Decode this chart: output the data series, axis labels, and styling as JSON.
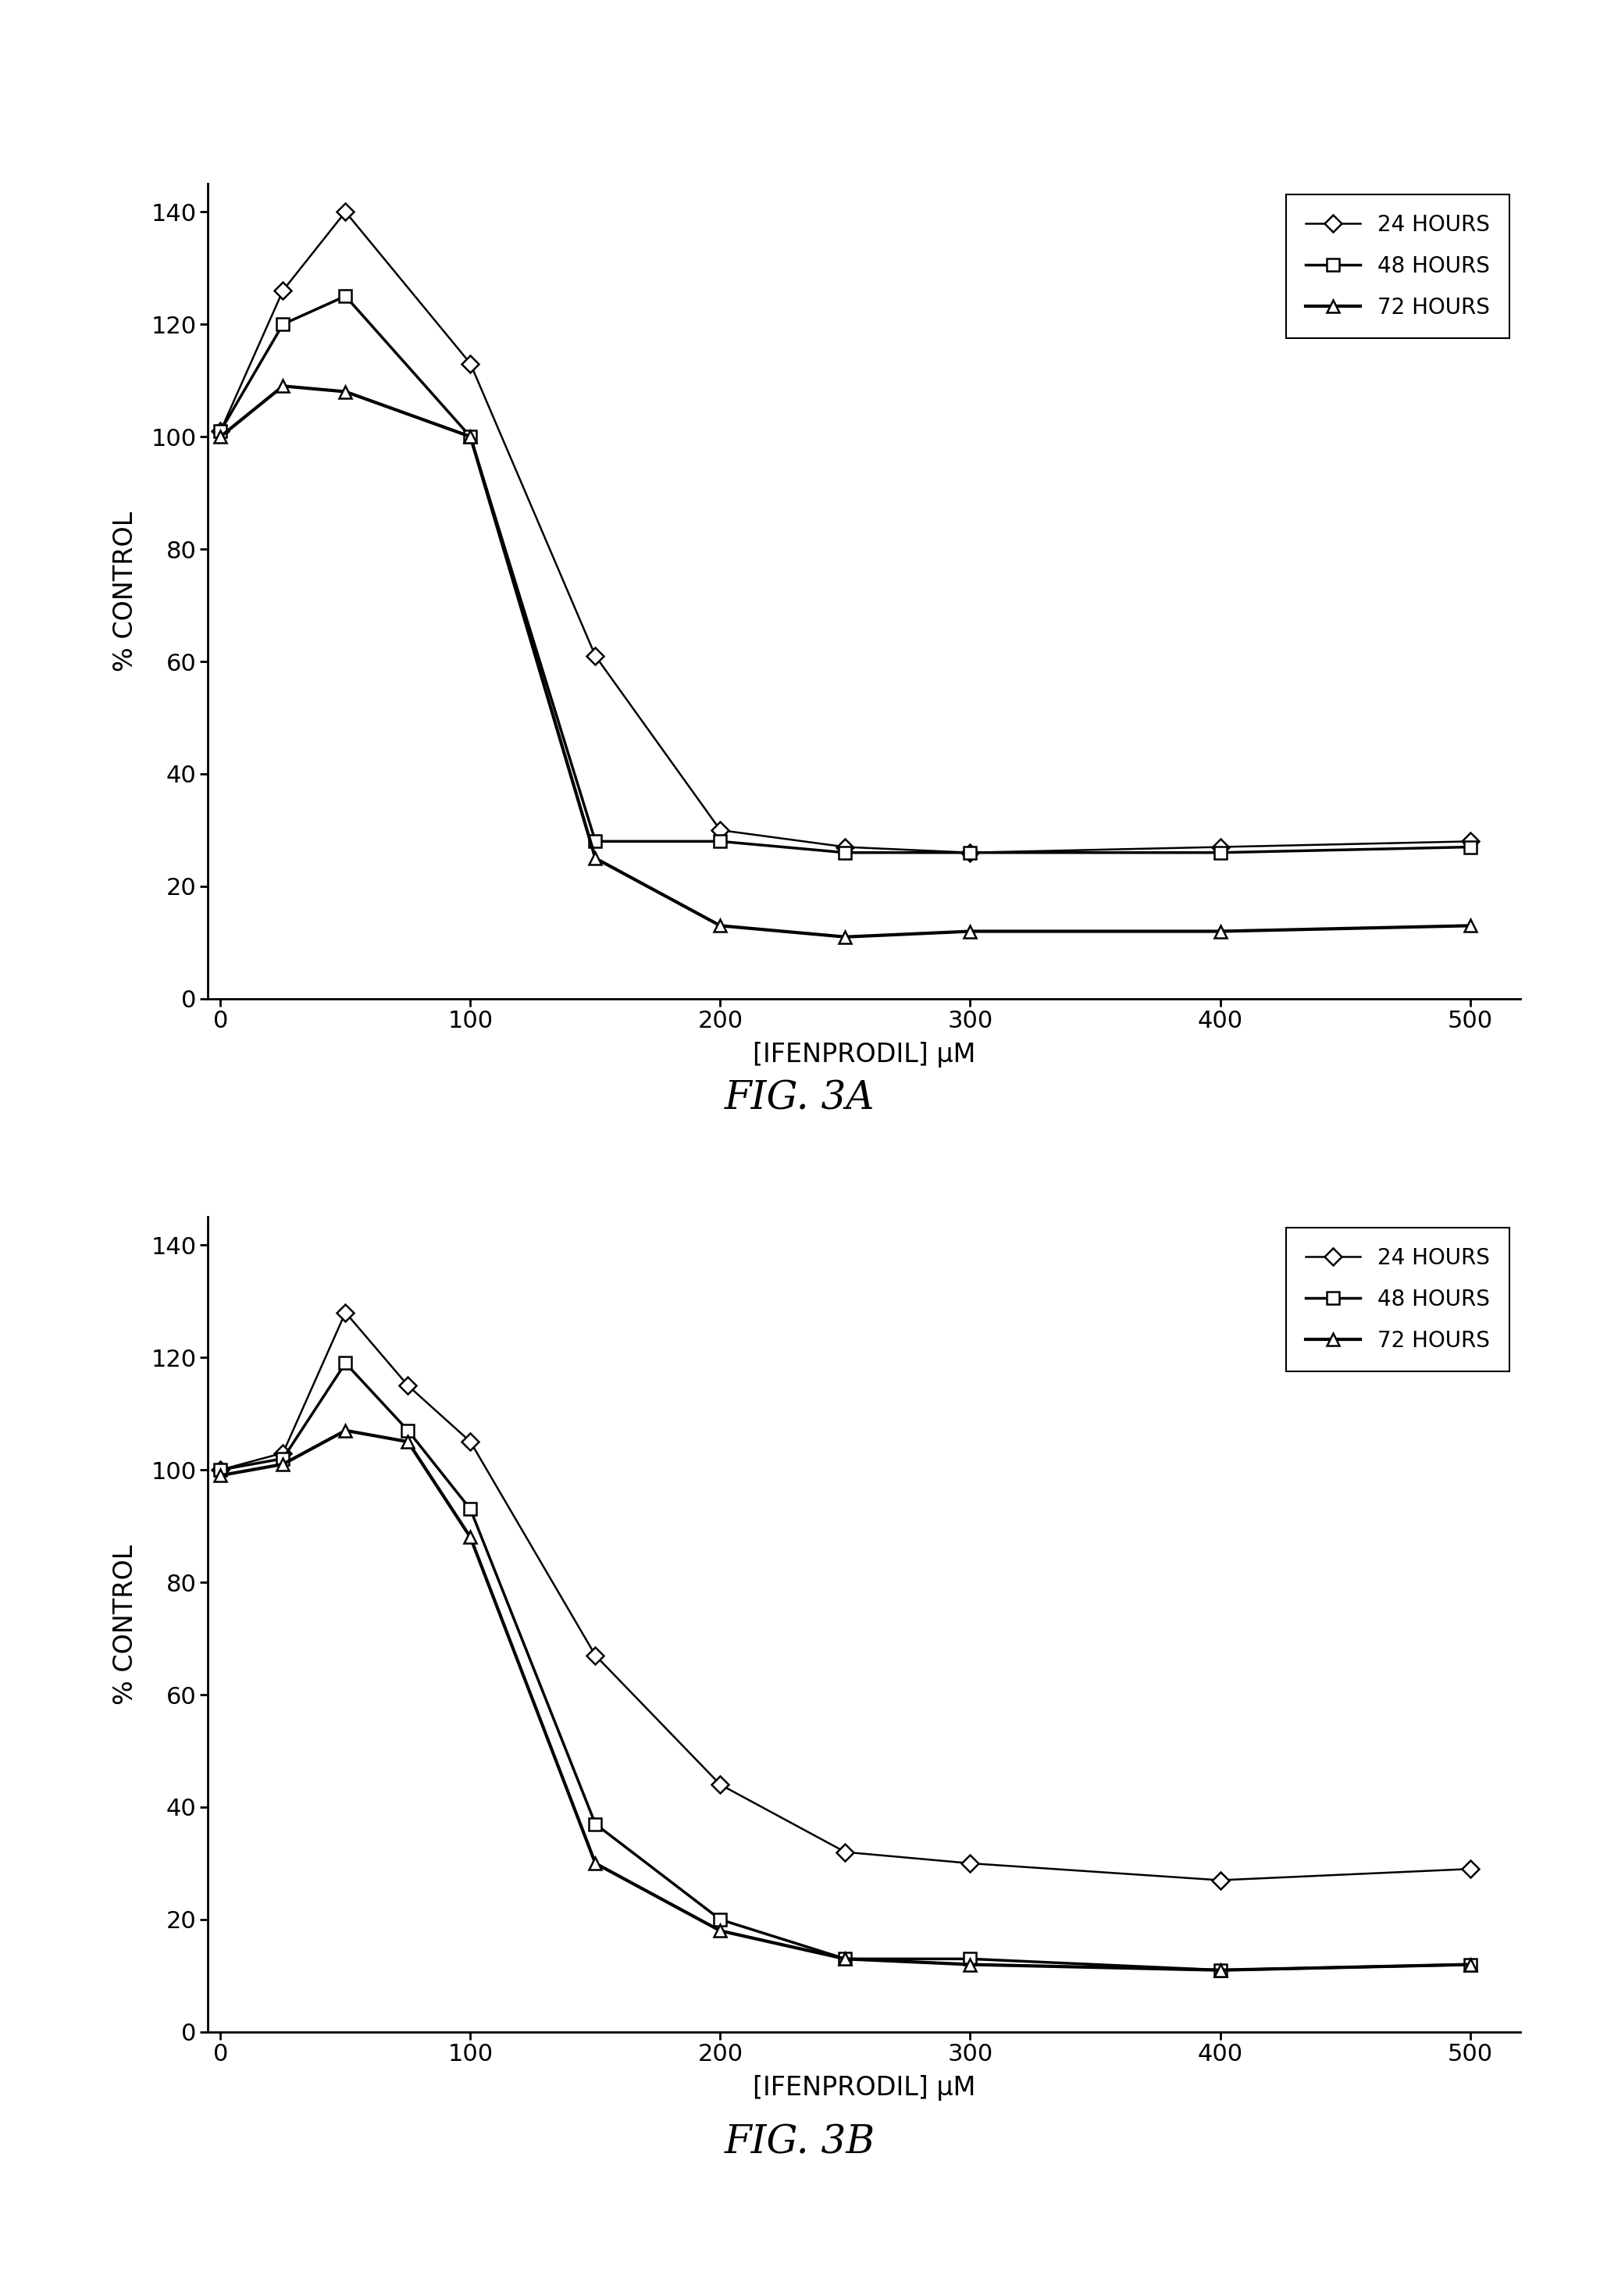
{
  "fig3a": {
    "x": [
      0,
      25,
      50,
      100,
      150,
      200,
      250,
      300,
      400,
      500
    ],
    "y_24h": [
      101,
      126,
      140,
      113,
      61,
      30,
      27,
      26,
      27,
      28
    ],
    "y_48h": [
      101,
      120,
      125,
      100,
      28,
      28,
      26,
      26,
      26,
      27
    ],
    "y_72h": [
      100,
      109,
      108,
      100,
      25,
      13,
      11,
      12,
      12,
      13
    ]
  },
  "fig3b": {
    "x": [
      0,
      25,
      50,
      75,
      100,
      150,
      200,
      250,
      300,
      400,
      500
    ],
    "y_24h": [
      100,
      103,
      128,
      115,
      105,
      67,
      44,
      32,
      30,
      27,
      29
    ],
    "y_48h": [
      100,
      102,
      119,
      107,
      93,
      37,
      20,
      13,
      13,
      11,
      12
    ],
    "y_72h": [
      99,
      101,
      107,
      105,
      88,
      30,
      18,
      13,
      12,
      11,
      12
    ]
  },
  "xlabel": "[IFENPRODIL] μM",
  "ylabel": "% CONTROL",
  "ylim": [
    0,
    145
  ],
  "xlim": [
    -5,
    520
  ],
  "yticks": [
    0,
    20,
    40,
    60,
    80,
    100,
    120,
    140
  ],
  "xticks": [
    0,
    100,
    200,
    300,
    400,
    500
  ],
  "legend_labels": [
    "24 HOURS",
    "48 HOURS",
    "72 HOURS"
  ],
  "fig3a_label": "FIG. 3A",
  "fig3b_label": "FIG. 3B",
  "line_color": "#000000",
  "bg_color": "#ffffff",
  "linewidth_thin": 1.8,
  "linewidth_thick": 3.0,
  "markersize": 11,
  "markeredgewidth": 1.8,
  "tick_labelsize": 22,
  "axis_labelsize": 24,
  "legend_fontsize": 20,
  "fig_label_fontsize": 36
}
